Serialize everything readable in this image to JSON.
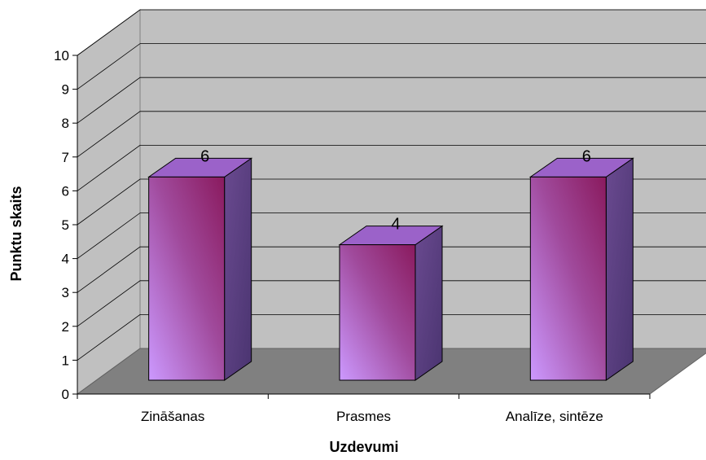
{
  "chart_data": {
    "type": "bar",
    "categories": [
      "Zināšanas",
      "Prasmes",
      "Analīze, sintēze"
    ],
    "series": [
      {
        "values": [
          6,
          4,
          6
        ]
      }
    ],
    "data_labels": [
      "6",
      "4",
      "6"
    ],
    "title": "",
    "xlabel": "Uzdevumi",
    "ylabel": "Punktu skaits",
    "ylim": [
      0,
      10
    ],
    "y_ticks": [
      0,
      1,
      2,
      3,
      4,
      5,
      6,
      7,
      8,
      9,
      10
    ],
    "grid": true,
    "legend": "none",
    "style": "3d-column",
    "colors": {
      "wall": "#c0c0c0",
      "floor": "#808080",
      "grid": "#000000",
      "bar_front_light": "#cc99ff",
      "bar_front_mid": "#a04a9c",
      "bar_front_dark": "#8a1a5e",
      "bar_top": "#9b62c9",
      "bar_side": "#4a3470"
    }
  }
}
